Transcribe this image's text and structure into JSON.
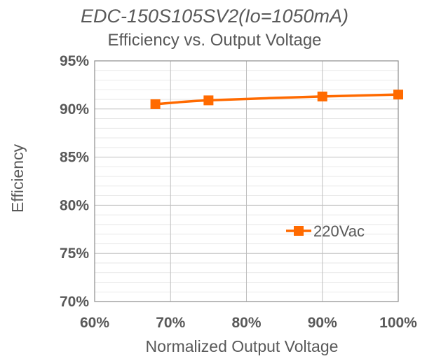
{
  "chart_data": {
    "type": "line",
    "title": "EDC-150S105SV2(Io=1050mA)",
    "subtitle": "Efficiency vs. Output Voltage",
    "xlabel": "Normalized Output Voltage",
    "ylabel": "Efficiency",
    "xlim": [
      60,
      100
    ],
    "ylim": [
      70,
      95
    ],
    "x_ticks": [
      "60%",
      "70%",
      "80%",
      "90%",
      "100%"
    ],
    "y_ticks": [
      "70%",
      "75%",
      "80%",
      "85%",
      "90%",
      "95%"
    ],
    "grid": true,
    "legend_position": "lower-right",
    "series": [
      {
        "name": "220Vac",
        "color": "#ff6a00",
        "marker": "square",
        "x": [
          68,
          75,
          90,
          100
        ],
        "y": [
          90.5,
          90.9,
          91.3,
          91.5
        ]
      }
    ]
  }
}
